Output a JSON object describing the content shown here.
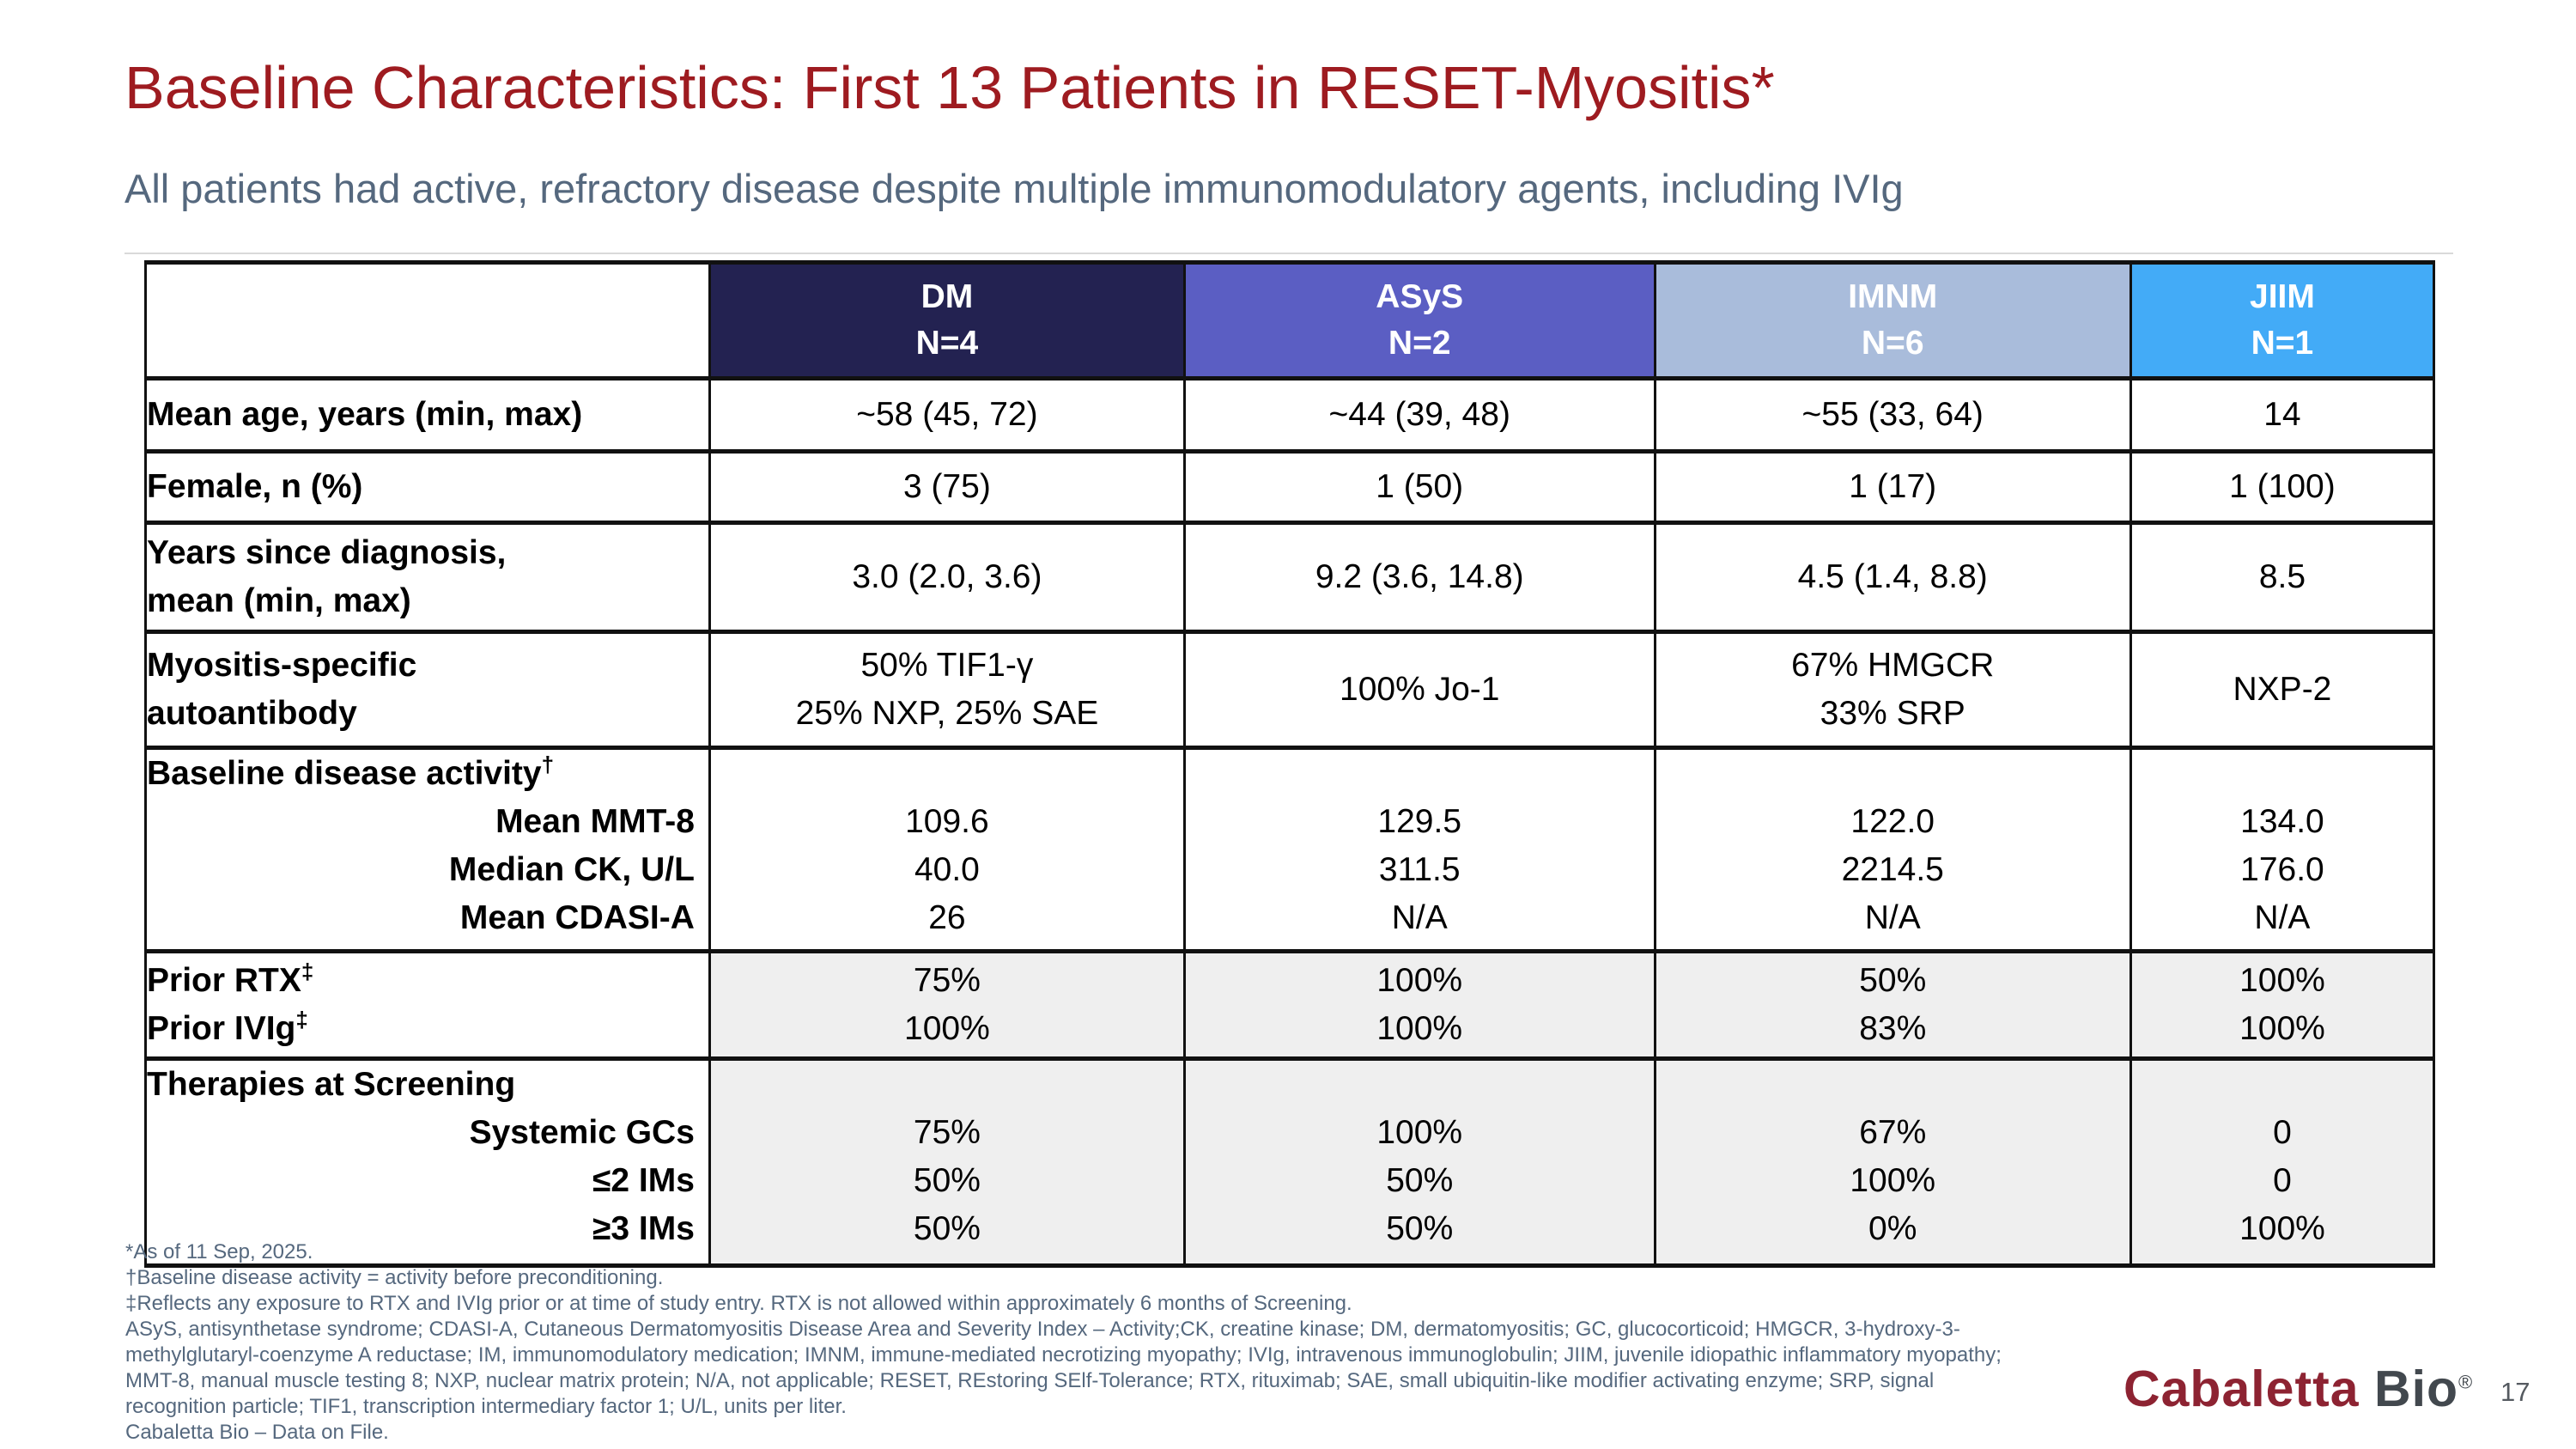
{
  "title": "Baseline Characteristics: First 13 Patients in RESET-Myositis*",
  "subtitle": "All patients had active, refractory disease despite multiple immunomodulatory agents, including IVIg",
  "page_number": "17",
  "logo": {
    "word1": "Cabaletta",
    "word2": " Bio",
    "mark": "®"
  },
  "colors": {
    "title_red": "#9E1B20",
    "subtitle_slate": "#55687E",
    "dm_header": "#232251",
    "asys_header": "#5B5EC3",
    "imnm_header": "#A9BCDB",
    "jiim_header": "#43ABF7",
    "shaded_cell": "#EFEFEF",
    "logo_maroon": "#8D2332",
    "logo_gray": "#42484E"
  },
  "table": {
    "headers": [
      {
        "group": "DM",
        "n": "N=4"
      },
      {
        "group": "ASyS",
        "n": "N=2"
      },
      {
        "group": "IMNM",
        "n": "N=6"
      },
      {
        "group": "JIIM",
        "n": "N=1"
      }
    ],
    "age": {
      "label": "Mean age, years (min, max)",
      "dm": "~58 (45, 72)",
      "asys": "~44 (39, 48)",
      "imnm": "~55 (33, 64)",
      "jiim": "14"
    },
    "female": {
      "label": "Female, n (%)",
      "dm": "3 (75)",
      "asys": "1 (50)",
      "imnm": "1 (17)",
      "jiim": "1 (100)"
    },
    "years": {
      "label1": "Years since diagnosis,",
      "label2": "mean (min, max)",
      "dm": "3.0 (2.0, 3.6)",
      "asys": "9.2 (3.6, 14.8)",
      "imnm": "4.5 (1.4, 8.8)",
      "jiim": "8.5"
    },
    "autoantibody": {
      "label1": "Myositis-specific",
      "label2": "autoantibody",
      "dm1": "50% TIF1-γ",
      "dm2": "25% NXP, 25% SAE",
      "asys": "100% Jo-1",
      "imnm1": "67% HMGCR",
      "imnm2": "33% SRP",
      "jiim": "NXP-2"
    },
    "activity": {
      "title": "Baseline disease activity",
      "dagger": "†",
      "sub1": "Mean MMT-8",
      "sub2": "Median CK, U/L",
      "sub3": "Mean CDASI-A",
      "dm1": "109.6",
      "dm2": "40.0",
      "dm3": "26",
      "asys1": "129.5",
      "asys2": "311.5",
      "asys3": "N/A",
      "imnm1": "122.0",
      "imnm2": "2214.5",
      "imnm3": "N/A",
      "jiim1": "134.0",
      "jiim2": "176.0",
      "jiim3": "N/A"
    },
    "prior": {
      "label1": "Prior RTX",
      "label2": "Prior IVIg",
      "ddagger": "‡",
      "dm1": "75%",
      "dm2": "100%",
      "asys1": "100%",
      "asys2": "100%",
      "imnm1": "50%",
      "imnm2": "83%",
      "jiim1": "100%",
      "jiim2": "100%"
    },
    "therapies": {
      "title": "Therapies at Screening",
      "sub1": "Systemic GCs",
      "sub2": "≤2 IMs",
      "sub3": "≥3 IMs",
      "dm1": "75%",
      "dm2": "50%",
      "dm3": "50%",
      "asys1": "100%",
      "asys2": "50%",
      "asys3": "50%",
      "imnm1": "67%",
      "imnm2": "100%",
      "imnm3": "0%",
      "jiim1": "0",
      "jiim2": "0",
      "jiim3": "100%"
    }
  },
  "footnotes": [
    "*As of 11 Sep, 2025.",
    "†Baseline disease activity = activity before preconditioning.",
    "‡Reflects any exposure to RTX and IVIg prior or at time of study entry. RTX is not allowed within approximately 6 months of Screening.",
    "ASyS, antisynthetase syndrome; CDASI-A, Cutaneous Dermatomyositis Disease Area and Severity Index – Activity;CK, creatine kinase; DM, dermatomyositis; GC, glucocorticoid; HMGCR, 3-hydroxy-3-",
    "methylglutaryl-coenzyme A reductase; IM, immunomodulatory medication; IMNM, immune-mediated necrotizing myopathy; IVIg, intravenous immunoglobulin; JIIM, juvenile idiopathic inflammatory myopathy;",
    "MMT-8, manual muscle testing 8; NXP, nuclear matrix protein; N/A, not applicable; RESET, REstoring SElf-Tolerance; RTX, rituximab; SAE, small ubiquitin-like modifier activating enzyme; SRP, signal",
    "recognition particle; TIF1, transcription intermediary factor 1; U/L, units per liter.",
    "Cabaletta Bio – Data on File."
  ]
}
